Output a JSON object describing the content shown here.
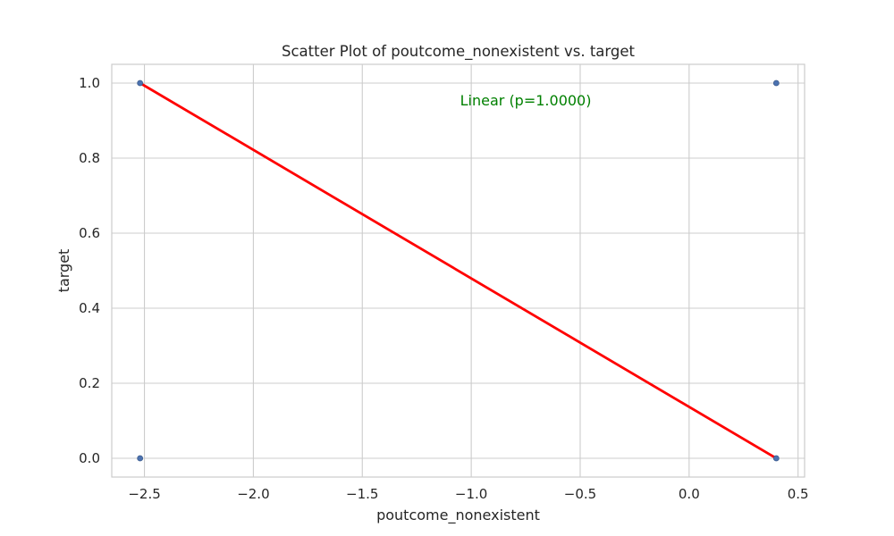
{
  "chart_data": {
    "type": "scatter",
    "title": "Scatter Plot of poutcome_nonexistent vs. target",
    "xlabel": "poutcome_nonexistent",
    "ylabel": "target",
    "xlim": [
      -2.65,
      0.53
    ],
    "ylim": [
      -0.05,
      1.05
    ],
    "xticks": [
      -2.5,
      -2.0,
      -1.5,
      -1.0,
      -0.5,
      0.0,
      0.5
    ],
    "xtick_labels": [
      "−2.5",
      "−2.0",
      "−1.5",
      "−1.0",
      "−0.5",
      "0.0",
      "0.5"
    ],
    "yticks": [
      0.0,
      0.2,
      0.4,
      0.6,
      0.8,
      1.0
    ],
    "ytick_labels": [
      "0.0",
      "0.2",
      "0.4",
      "0.6",
      "0.8",
      "1.0"
    ],
    "grid": true,
    "points": [
      {
        "x": -2.52,
        "y": 1.0
      },
      {
        "x": -2.52,
        "y": 0.0
      },
      {
        "x": 0.4,
        "y": 1.0
      },
      {
        "x": 0.4,
        "y": 0.0
      }
    ],
    "point_color": "#4c72b0",
    "fit_line": {
      "x": [
        -2.52,
        0.4
      ],
      "y": [
        1.0,
        0.0
      ],
      "color": "#ff0000"
    },
    "annotation": {
      "text": "Linear (p=1.0000)",
      "x": -0.75,
      "y": 0.955,
      "color": "#008000"
    }
  }
}
